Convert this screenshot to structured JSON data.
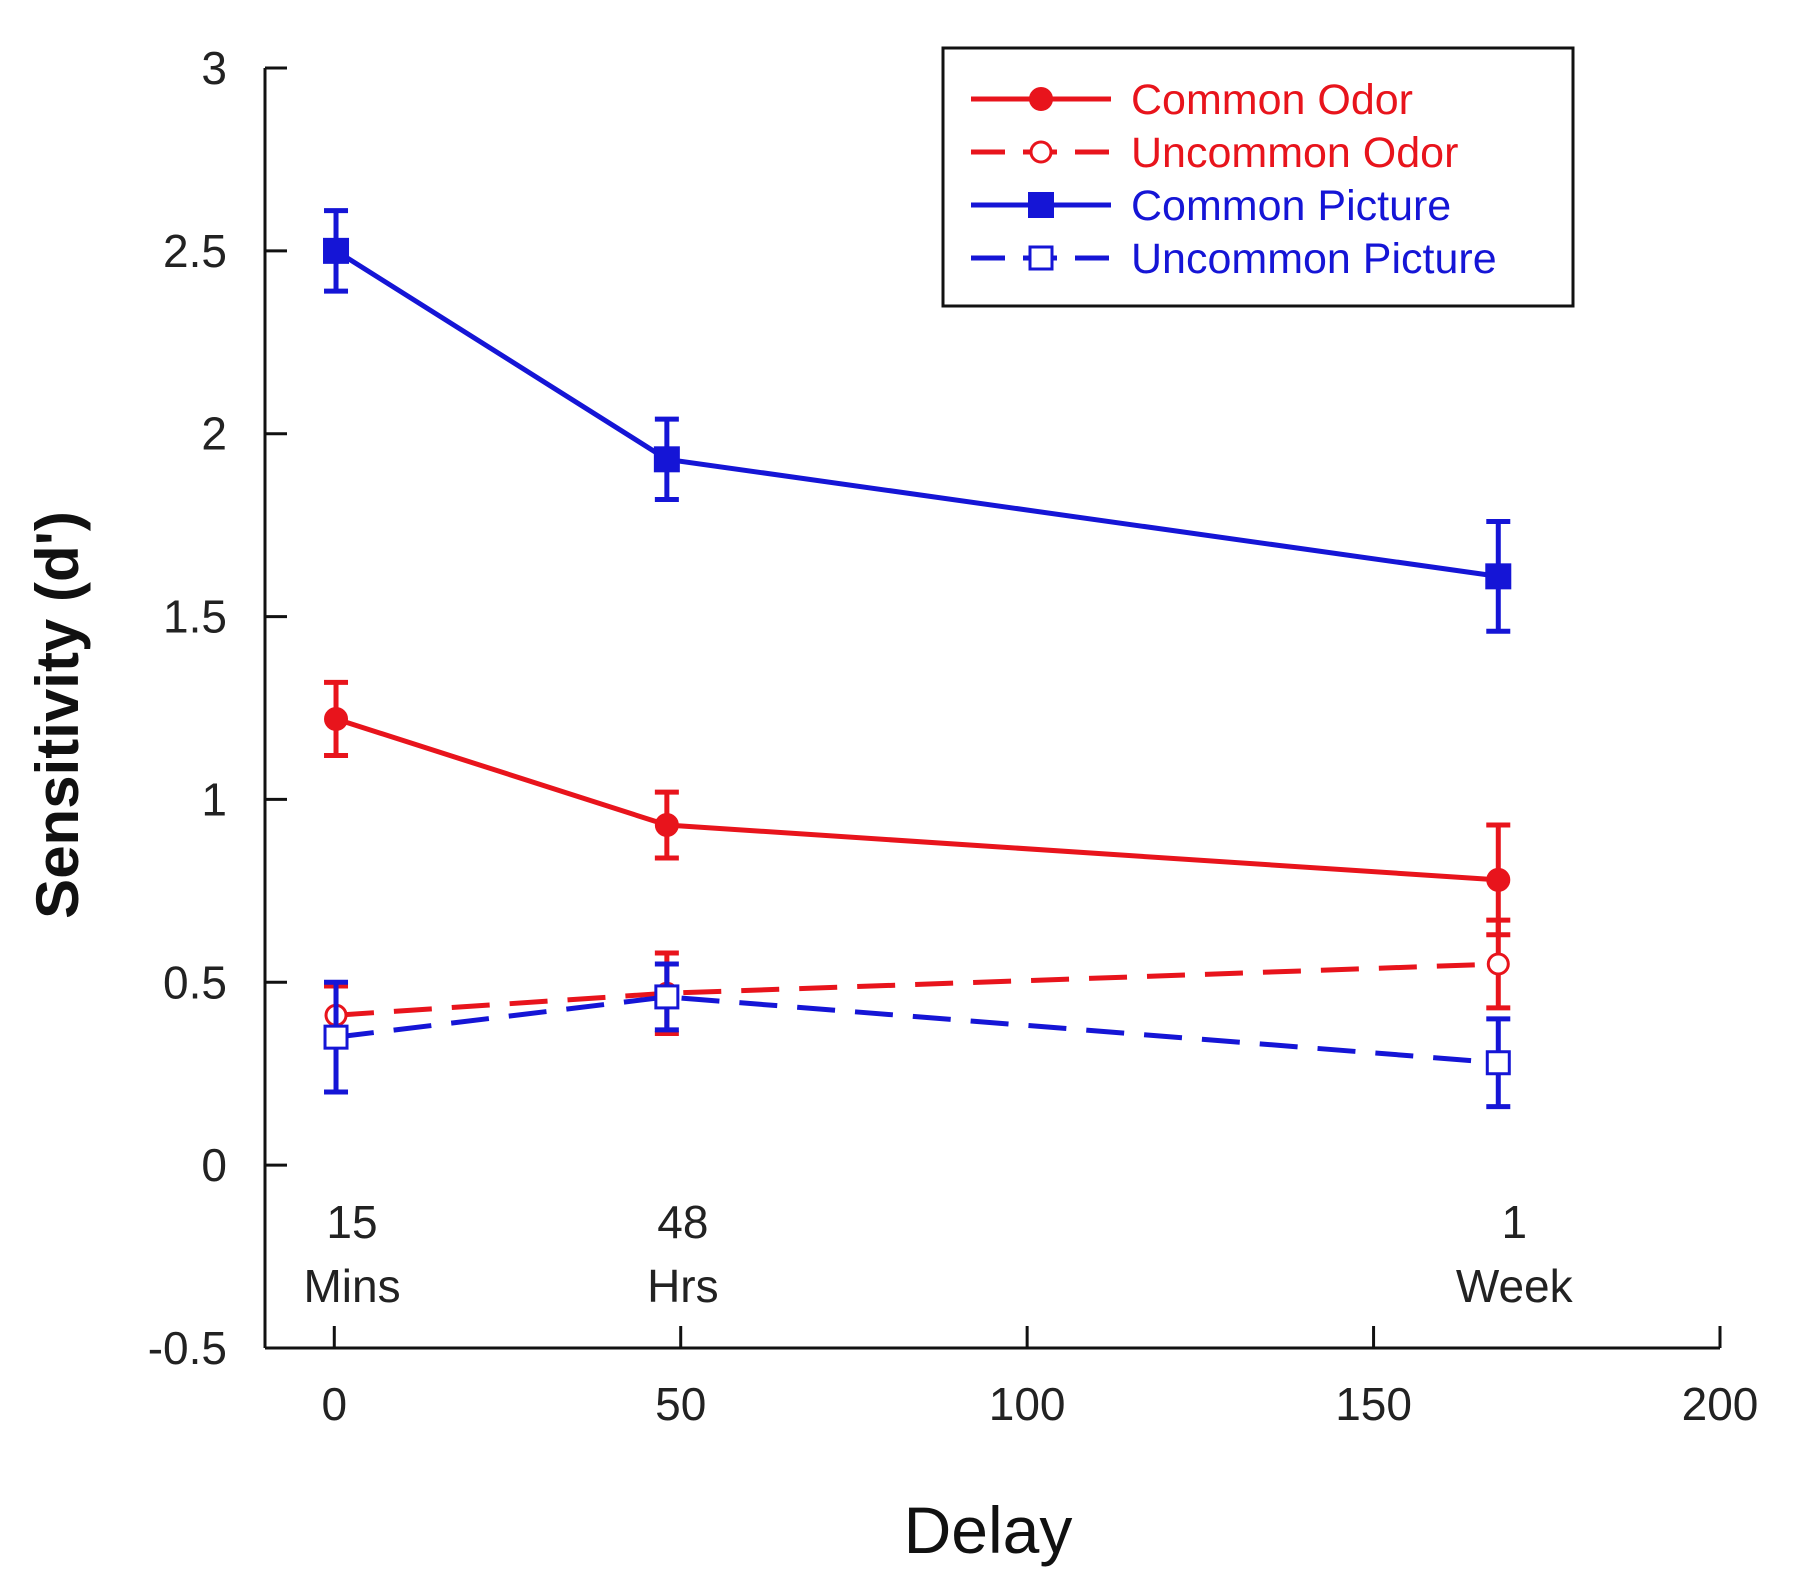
{
  "chart_data": {
    "type": "line",
    "xlabel": "Delay",
    "ylabel": "Sensitivity (d')",
    "xlim": [
      -10,
      200
    ],
    "ylim": [
      -0.5,
      3
    ],
    "xticks": [
      0,
      50,
      100,
      150,
      200
    ],
    "xtick_labels": [
      "0",
      "50",
      "100",
      "150",
      "200"
    ],
    "yticks": [
      -0.5,
      0,
      0.5,
      1,
      1.5,
      2,
      2.5,
      3
    ],
    "ytick_labels": [
      "-0.5",
      "0",
      "0.5",
      "1",
      "1.5",
      "2",
      "2.5",
      "3"
    ],
    "annotations": [
      {
        "x": 0.25,
        "lines": [
          "15",
          "Mins"
        ]
      },
      {
        "x": 48,
        "lines": [
          "48",
          "Hrs"
        ]
      },
      {
        "x": 168,
        "lines": [
          "1",
          "Week"
        ]
      }
    ],
    "legend_position": "top-right",
    "series": [
      {
        "name": "Common Odor",
        "color": "#e8141c",
        "dash": false,
        "marker": "filled-circle",
        "x": [
          0.25,
          48,
          168
        ],
        "y": [
          1.22,
          0.93,
          0.78
        ],
        "err": [
          0.1,
          0.09,
          0.15
        ]
      },
      {
        "name": "Uncommon Odor",
        "color": "#e8141c",
        "dash": true,
        "marker": "open-circle",
        "x": [
          0.25,
          48,
          168
        ],
        "y": [
          0.41,
          0.47,
          0.55
        ],
        "err": [
          0.08,
          0.11,
          0.12
        ]
      },
      {
        "name": "Common Picture",
        "color": "#1515d6",
        "dash": false,
        "marker": "filled-square",
        "x": [
          0.25,
          48,
          168
        ],
        "y": [
          2.5,
          1.93,
          1.61
        ],
        "err": [
          0.11,
          0.11,
          0.15
        ]
      },
      {
        "name": "Uncommon Picture",
        "color": "#1515d6",
        "dash": true,
        "marker": "open-square",
        "x": [
          0.25,
          48,
          168
        ],
        "y": [
          0.35,
          0.46,
          0.28
        ],
        "err": [
          0.15,
          0.09,
          0.12
        ]
      }
    ]
  }
}
